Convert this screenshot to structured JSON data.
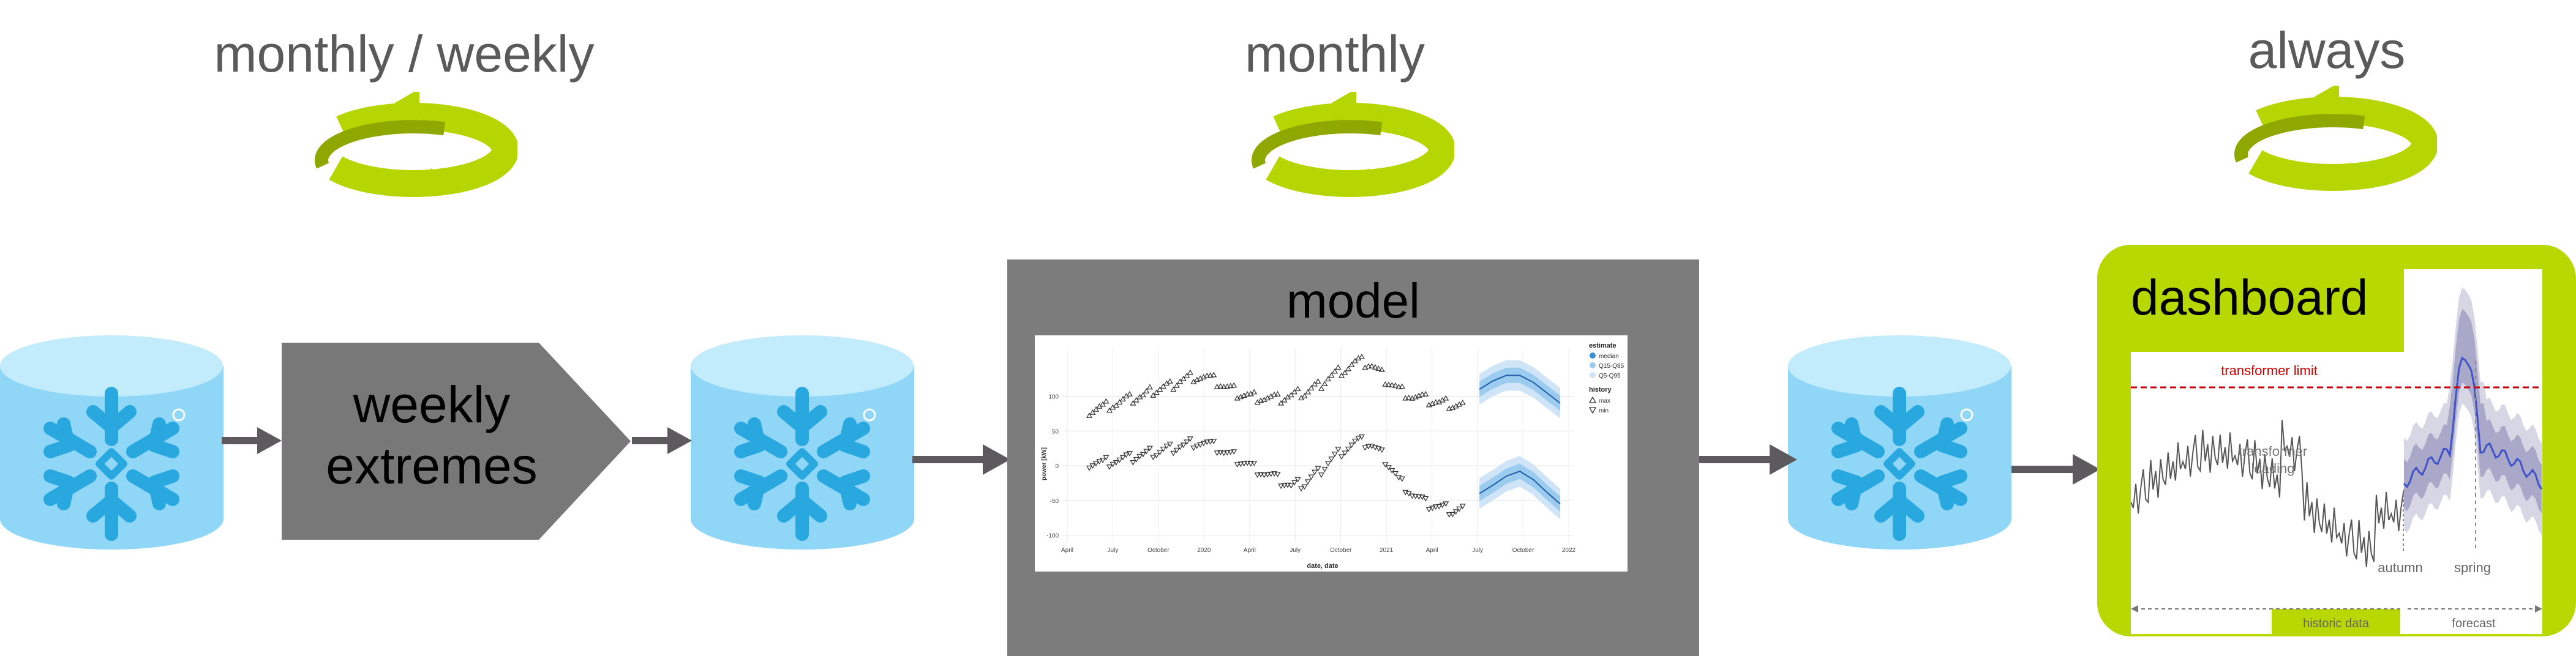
{
  "frequencies": {
    "left": "monthly / weekly",
    "middle": "monthly",
    "right": "always"
  },
  "stages": {
    "extremes_label_line1": "weekly",
    "extremes_label_line2": "extremes",
    "model_title": "model",
    "dashboard_title": "dashboard"
  },
  "colors": {
    "cycle_green": "#b5d600",
    "cycle_dark": "#8fa800",
    "db_blue": "#8fd6f7",
    "db_top": "#c2ebfb",
    "snowflake": "#29a8e0",
    "process_gray": "#787878",
    "arrow_gray": "#5d5a5e",
    "dashboard_frame": "#b7d800",
    "limit_red": "#cc0000",
    "forecast_blue": "#3f52c9"
  },
  "icons": [
    "database-icon",
    "snowflake-icon",
    "cycle-arrows-icon"
  ],
  "model_chart": {
    "legend": {
      "estimate_title": "estimate",
      "estimate_items": [
        "median",
        "Q15-Q85",
        "Q5-Q95"
      ],
      "history_title": "history",
      "history_items": [
        "max",
        "min"
      ]
    },
    "ylabel": "power [kW]",
    "xlabel": "date, date",
    "yticks": [
      "100",
      "50",
      "0",
      "-50",
      "-100"
    ],
    "xticks": [
      "April",
      "July",
      "October",
      "2020",
      "April",
      "July",
      "October",
      "2021",
      "April",
      "July",
      "October",
      "2022"
    ]
  },
  "dashboard_chart": {
    "limit_label": "transformer limit",
    "loading_label_line1": "transformer",
    "loading_label_line2": "loading",
    "autumn_label": "autumn",
    "spring_label": "spring",
    "historic_label": "historic data",
    "forecast_label": "forecast"
  },
  "chart_data": {
    "type": "line",
    "title": "",
    "xlabel": "date, date",
    "ylabel": "power [kW]",
    "ylim": [
      -110,
      170
    ],
    "series": [
      {
        "name": "max",
        "x": [
          "2019-05",
          "2019-06",
          "2019-07",
          "2019-08",
          "2019-09",
          "2019-10",
          "2019-11",
          "2019-12",
          "2020-01",
          "2020-02",
          "2020-03",
          "2020-04",
          "2020-05",
          "2020-06",
          "2020-07",
          "2020-08",
          "2020-09",
          "2020-10",
          "2020-11",
          "2020-12",
          "2021-01",
          "2021-02",
          "2021-03",
          "2021-04",
          "2021-05",
          "2021-06",
          "2021-07",
          "2021-08",
          "2021-09"
        ],
        "values": [
          80,
          85,
          90,
          95,
          100,
          110,
          115,
          125,
          130,
          125,
          115,
          105,
          100,
          98,
          95,
          100,
          105,
          115,
          130,
          140,
          150,
          145,
          125,
          110,
          100,
          95,
          90,
          88,
          85
        ]
      },
      {
        "name": "min",
        "x": [
          "2019-05",
          "2019-06",
          "2019-07",
          "2019-08",
          "2019-09",
          "2019-10",
          "2019-11",
          "2019-12",
          "2020-01",
          "2020-02",
          "2020-03",
          "2020-04",
          "2020-05",
          "2020-06",
          "2020-07",
          "2020-08",
          "2020-09",
          "2020-10",
          "2020-11",
          "2020-12",
          "2021-01",
          "2021-02",
          "2021-03",
          "2021-04",
          "2021-05",
          "2021-06",
          "2021-07",
          "2021-08",
          "2021-09"
        ],
        "values": [
          5,
          5,
          8,
          10,
          15,
          20,
          25,
          30,
          35,
          30,
          20,
          10,
          0,
          -10,
          -20,
          -30,
          -25,
          -10,
          10,
          25,
          35,
          30,
          10,
          -20,
          -40,
          -55,
          -60,
          -65,
          -62
        ]
      },
      {
        "name": "median",
        "x": [
          "2021-10",
          "2021-11",
          "2021-12",
          "2022-01",
          "2022-02",
          "2022-03",
          "2022-04"
        ],
        "values": [
          110,
          122,
          130,
          130,
          120,
          105,
          90
        ]
      },
      {
        "name": "median",
        "x": [
          "2021-10",
          "2021-11",
          "2021-12",
          "2022-01",
          "2022-02",
          "2022-03",
          "2022-04"
        ],
        "values": [
          -40,
          -28,
          -15,
          -8,
          -20,
          -38,
          -55
        ]
      }
    ]
  }
}
